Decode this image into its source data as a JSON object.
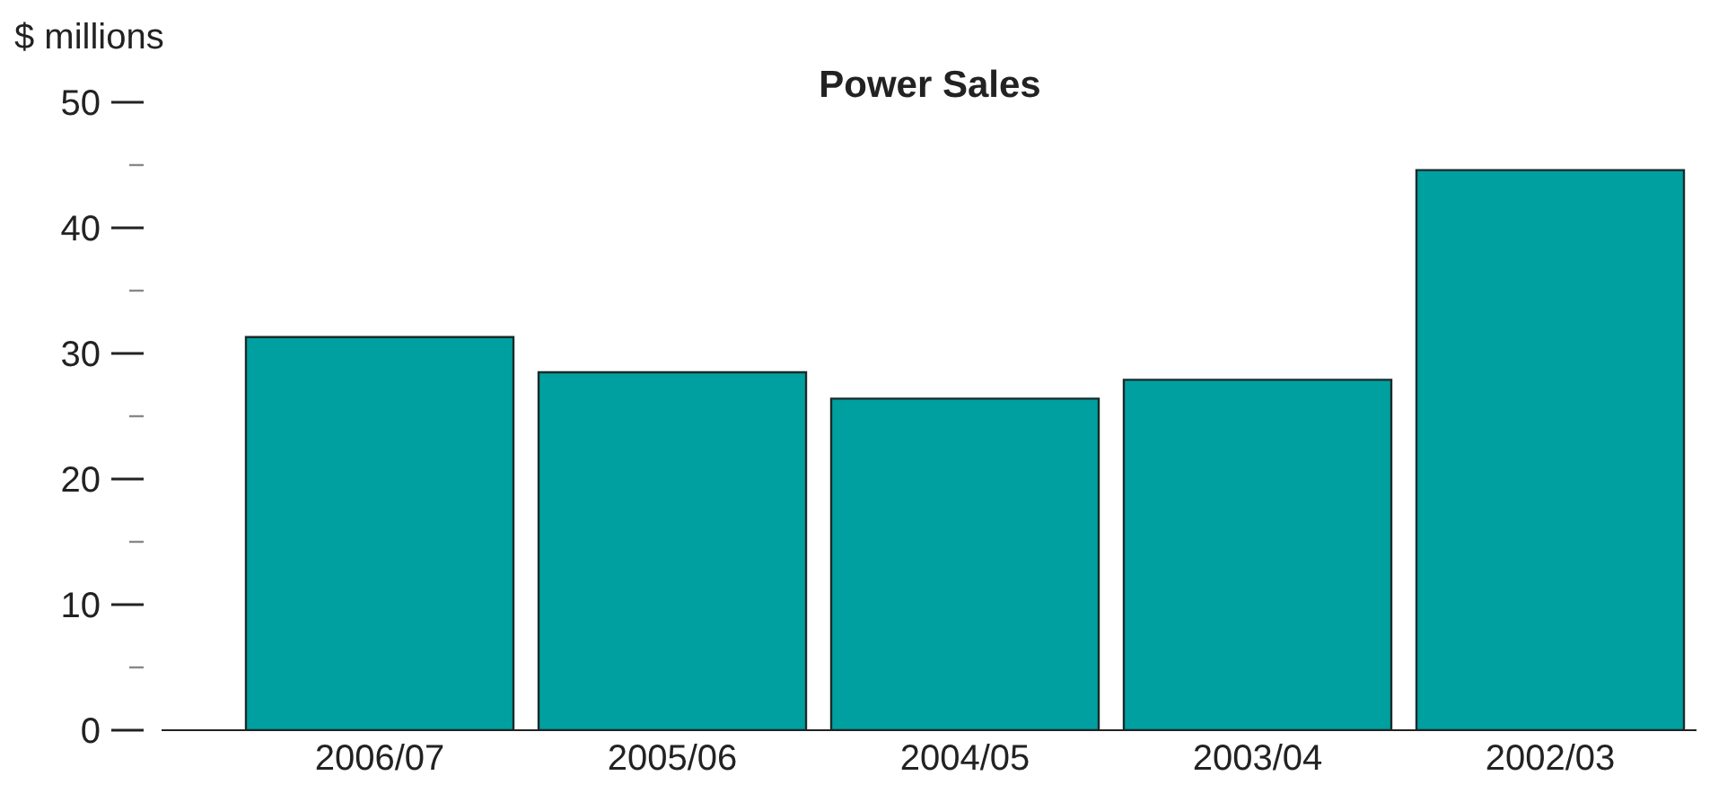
{
  "chart_data": {
    "type": "bar",
    "title": "Power Sales",
    "ylabel": "$ millions",
    "categories": [
      "2006/07",
      "2005/06",
      "2004/05",
      "2003/04",
      "2002/03"
    ],
    "values": [
      31.3,
      28.5,
      26.4,
      27.9,
      44.6
    ],
    "color": "#00a0a0",
    "ylim": [
      0,
      50
    ],
    "yticks": [
      0,
      {
        "value": 5,
        "label": null
      },
      10,
      {
        "value": 15,
        "label": null
      },
      20,
      {
        "value": 25,
        "label": null
      },
      30,
      {
        "value": 35,
        "label": null
      },
      40,
      {
        "value": 45,
        "label": null
      },
      50
    ],
    "grid": false,
    "legend": false
  }
}
